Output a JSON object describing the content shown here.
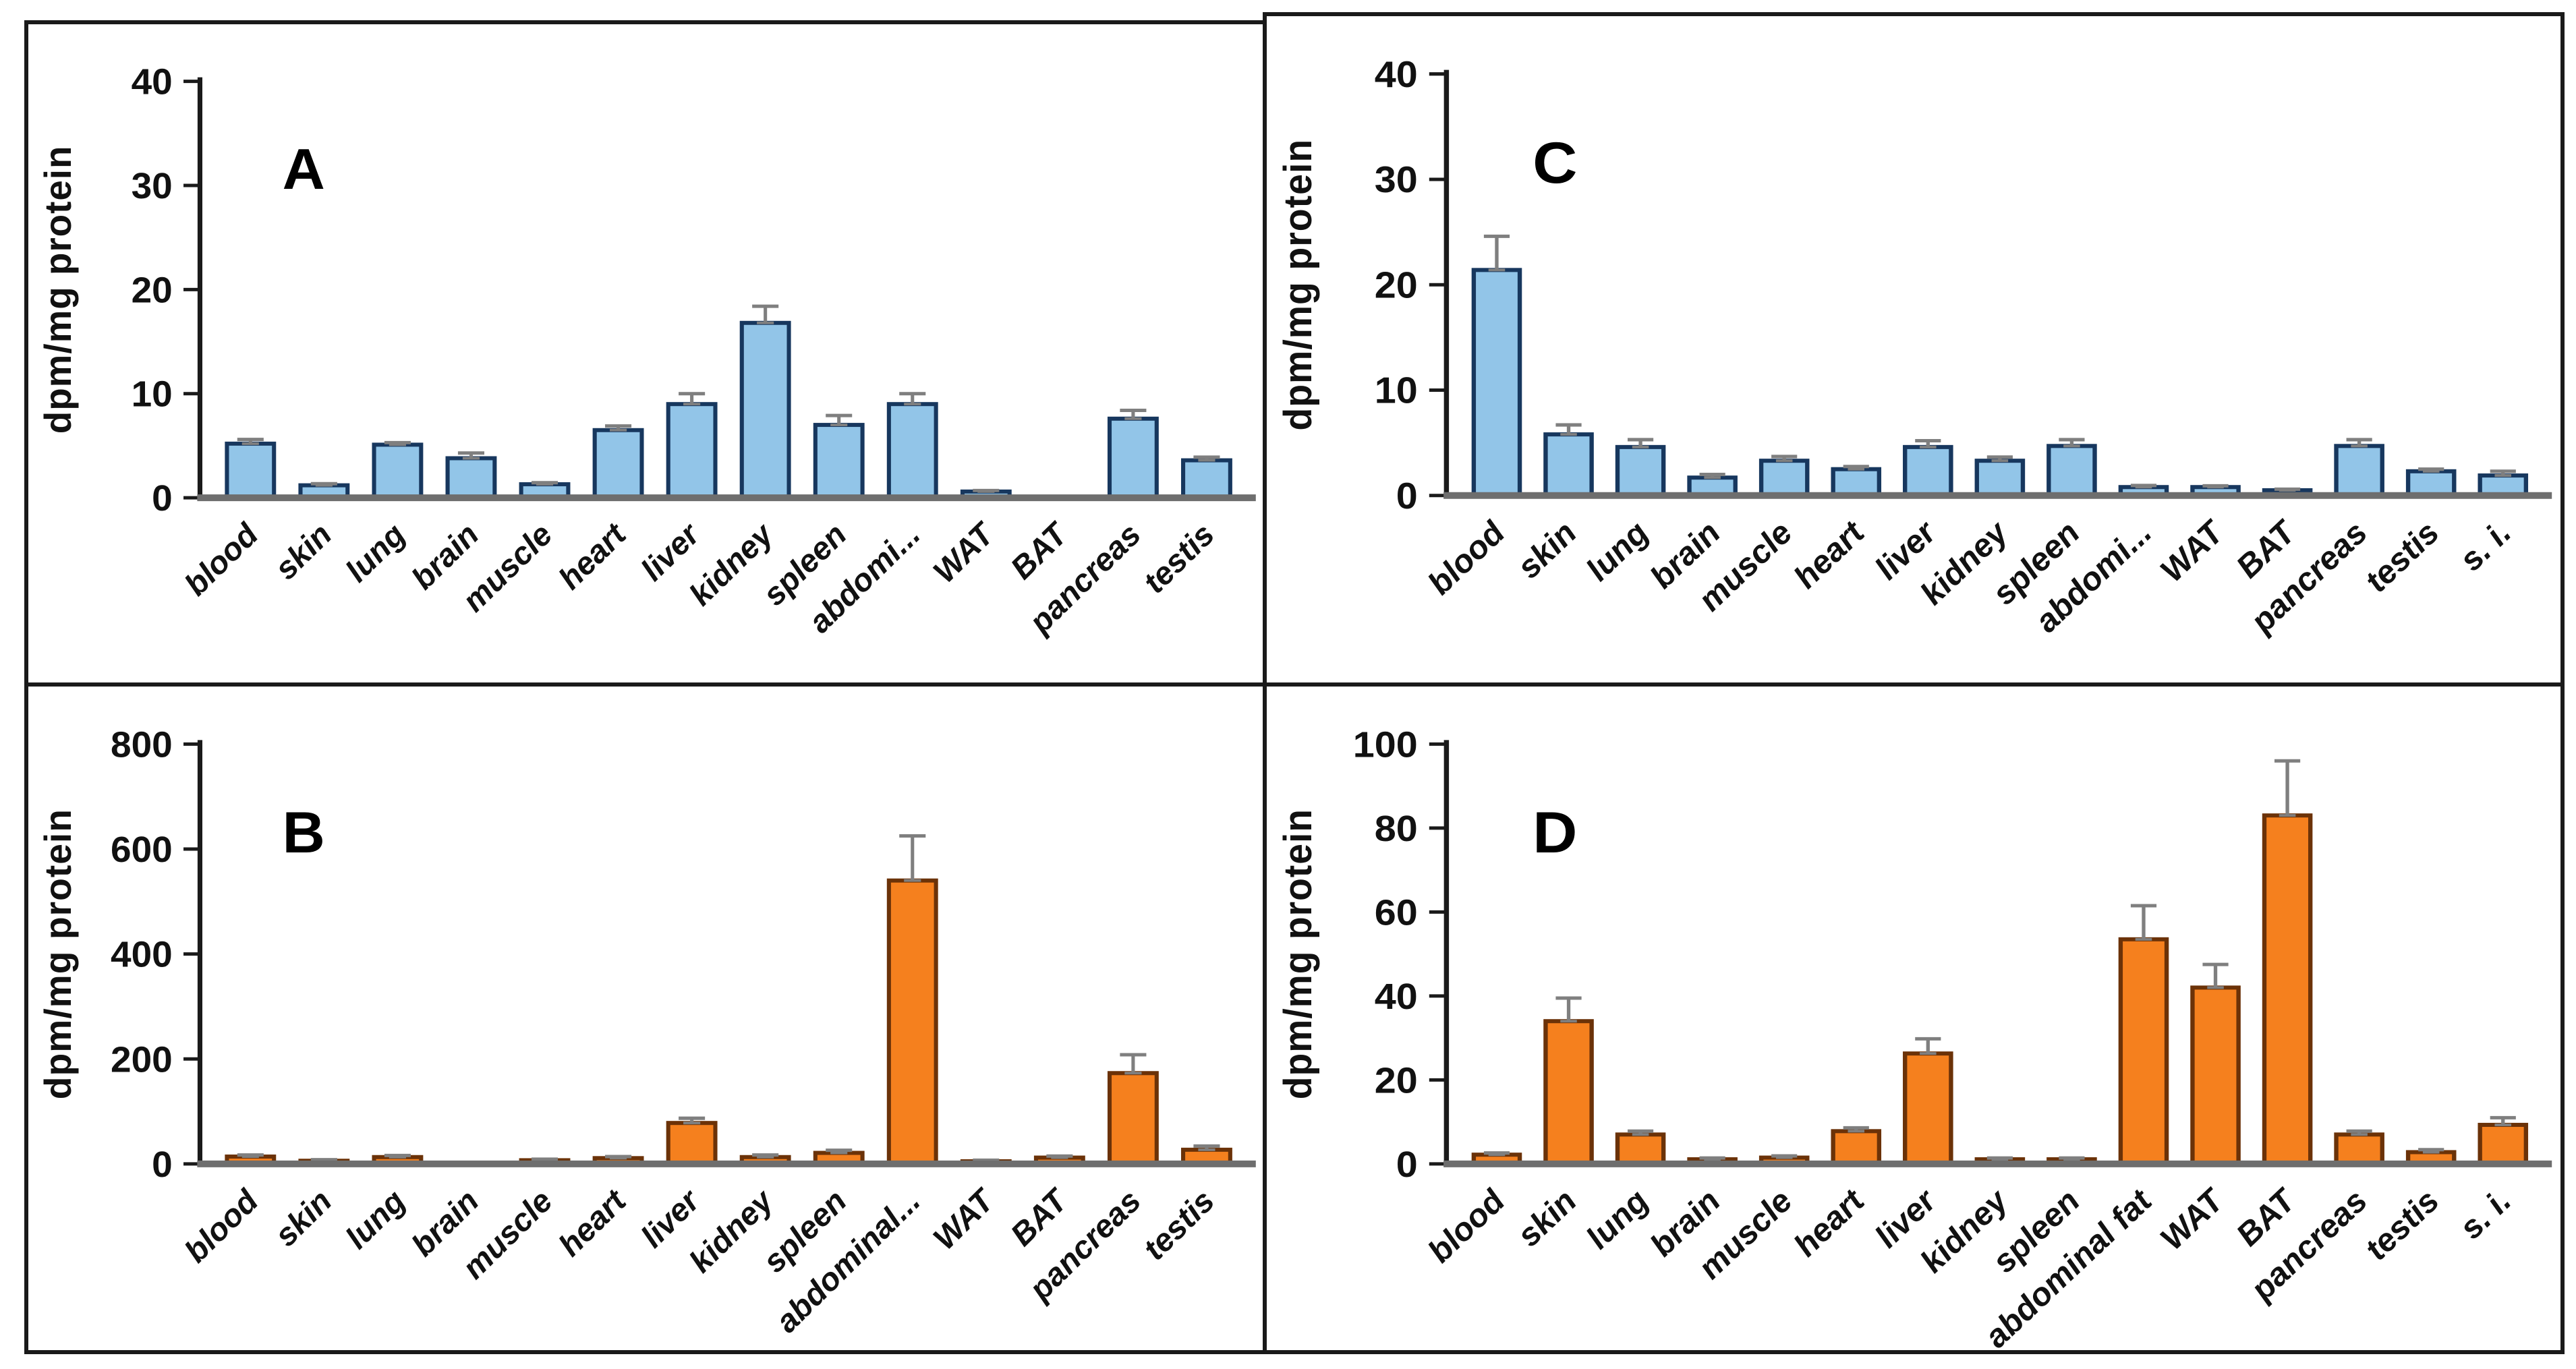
{
  "figure": {
    "description_visible_text_only": "",
    "style": {
      "error_bar_color": "#7F7F7F",
      "y_axis_color": "#1A1A1A",
      "x_baseline_color": "#6E6E6E",
      "blue_fill": "#92C5E8",
      "blue_border": "#17375E",
      "orange_fill": "#F5801E",
      "orange_border": "#6B3208"
    }
  },
  "chart_data": [
    {
      "type": "bar",
      "panel_label": "A",
      "ylabel": "dpm/mg protein",
      "ymax": 40,
      "ylim": [
        0,
        40
      ],
      "yticks": [
        0,
        10,
        20,
        30,
        40
      ],
      "grid": "off",
      "legend": "none",
      "bar_color": "#92C5E8",
      "bar_border_color": "#17375E",
      "categories": [
        "blood",
        "skin",
        "lung",
        "brain",
        "muscle",
        "heart",
        "liver",
        "kidney",
        "spleen",
        "abdomi...",
        "WAT",
        "BAT",
        "pancreas",
        "testis"
      ],
      "values": [
        5.2,
        1.2,
        5.1,
        3.8,
        1.3,
        6.5,
        9.0,
        16.8,
        7.0,
        9.0,
        0.6,
        0.1,
        7.6,
        3.6
      ],
      "errors": [
        0.4,
        0.15,
        0.2,
        0.5,
        0.15,
        0.4,
        1.0,
        1.6,
        0.9,
        1.0,
        0.1,
        0,
        0.8,
        0.3
      ]
    },
    {
      "type": "bar",
      "panel_label": "B",
      "ylabel": "dpm/mg protein",
      "ymax": 800,
      "ylim": [
        0,
        800
      ],
      "yticks": [
        0,
        200,
        400,
        600,
        800
      ],
      "grid": "off",
      "legend": "none",
      "bar_color": "#F5801E",
      "bar_border_color": "#6B3208",
      "categories": [
        "blood",
        "skin",
        "lung",
        "brain",
        "muscle",
        "heart",
        "liver",
        "kidney",
        "spleen",
        "abdominal...",
        "WAT",
        "BAT",
        "pancreas",
        "testis"
      ],
      "values": [
        14,
        6,
        13,
        2,
        7,
        11,
        78,
        13,
        21,
        540,
        5,
        12,
        173,
        27
      ],
      "errors": [
        3,
        2,
        3,
        1,
        2,
        3,
        9,
        4,
        5,
        85,
        2,
        3,
        35,
        7
      ]
    },
    {
      "type": "bar",
      "panel_label": "C",
      "ylabel": "dpm/mg protein",
      "ymax": 40,
      "ylim": [
        0,
        40
      ],
      "yticks": [
        0,
        10,
        20,
        30,
        40
      ],
      "grid": "off",
      "legend": "none",
      "bar_color": "#92C5E8",
      "bar_border_color": "#17375E",
      "categories": [
        "blood",
        "skin",
        "lung",
        "brain",
        "muscle",
        "heart",
        "liver",
        "kidney",
        "spleen",
        "abdomi...",
        "WAT",
        "BAT",
        "pancreas",
        "testis",
        "s. i."
      ],
      "values": [
        21.4,
        5.8,
        4.6,
        1.7,
        3.3,
        2.5,
        4.6,
        3.3,
        4.7,
        0.8,
        0.8,
        0.5,
        4.7,
        2.3,
        1.9
      ],
      "errors": [
        3.2,
        0.9,
        0.7,
        0.3,
        0.4,
        0.25,
        0.6,
        0.35,
        0.6,
        0.15,
        0.12,
        0.1,
        0.6,
        0.2,
        0.4
      ]
    },
    {
      "type": "bar",
      "panel_label": "D",
      "ylabel": "dpm/mg protein",
      "ymax": 100,
      "ylim": [
        0,
        100
      ],
      "yticks": [
        0,
        20,
        40,
        60,
        80,
        100
      ],
      "grid": "off",
      "legend": "none",
      "bar_color": "#F5801E",
      "bar_border_color": "#6B3208",
      "categories": [
        "blood",
        "skin",
        "lung",
        "brain",
        "muscle",
        "heart",
        "liver",
        "kidney",
        "spleen",
        "abdominal fat",
        "WAT",
        "BAT",
        "pancreas",
        "testis",
        "s. i."
      ],
      "values": [
        2.2,
        34,
        7,
        1.1,
        1.5,
        7.8,
        26.3,
        1.1,
        1.1,
        53.5,
        42,
        83,
        7,
        2.8,
        9.3
      ],
      "errors": [
        0.4,
        5.5,
        0.8,
        0.3,
        0.4,
        0.8,
        3.5,
        0.3,
        0.3,
        8,
        5.5,
        13,
        0.8,
        0.6,
        1.7
      ]
    }
  ]
}
